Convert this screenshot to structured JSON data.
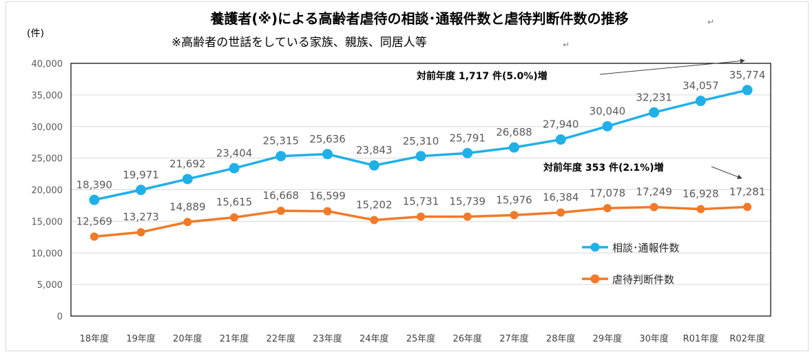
{
  "chart_data": {
    "type": "line",
    "title": "養護者(※)による高齢者虐待の相談･通報件数と虐待判断件数の推移",
    "subtitle": "※高齢者の世話をしている家族、親族、同居人等",
    "ylabel": "(件)",
    "ylim": [
      0,
      40000
    ],
    "yticks": [
      "0",
      "5,000",
      "10,000",
      "15,000",
      "20,000",
      "25,000",
      "30,000",
      "35,000",
      "40,000"
    ],
    "categories": [
      "18年度",
      "19年度",
      "20年度",
      "21年度",
      "22年度",
      "23年度",
      "24年度",
      "25年度",
      "26年度",
      "27年度",
      "28年度",
      "29年度",
      "30年度",
      "R01年度",
      "R02年度"
    ],
    "grid": true,
    "legend_position": "right",
    "series": [
      {
        "name": "相談･通報件数",
        "color": "#20b0e8",
        "values": [
          18390,
          19971,
          21692,
          23404,
          25315,
          25636,
          23843,
          25310,
          25791,
          26688,
          27940,
          30040,
          32231,
          34057,
          35774
        ],
        "labels": [
          "18,390",
          "19,971",
          "21,692",
          "23,404",
          "25,315",
          "25,636",
          "23,843",
          "25,310",
          "25,791",
          "26,688",
          "27,940",
          "30,040",
          "32,231",
          "34,057",
          "35,774"
        ]
      },
      {
        "name": "虐待判断件数",
        "color": "#f07a28",
        "values": [
          12569,
          13273,
          14889,
          15615,
          16668,
          16599,
          15202,
          15731,
          15739,
          15976,
          16384,
          17078,
          17249,
          16928,
          17281
        ],
        "labels": [
          "12,569",
          "13,273",
          "14,889",
          "15,615",
          "16,668",
          "16,599",
          "15,202",
          "15,731",
          "15,739",
          "15,976",
          "16,384",
          "17,078",
          "17,249",
          "16,928",
          "17,281"
        ]
      }
    ],
    "annotations": [
      {
        "text": "対前年度 1,717 件(5.0%)増",
        "series": 0,
        "point": 14
      },
      {
        "text": "対前年度 353 件(2.1%)増",
        "series": 1,
        "point": 14
      }
    ]
  }
}
